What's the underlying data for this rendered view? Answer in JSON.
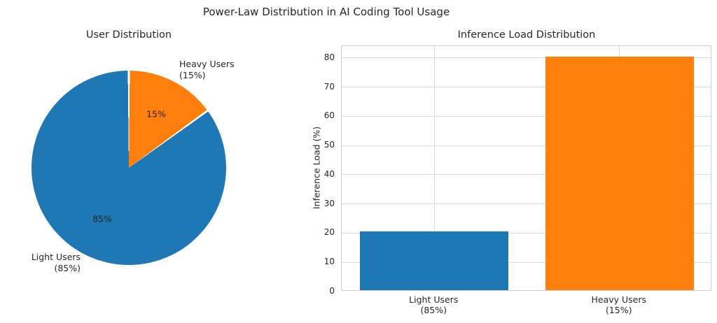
{
  "figure": {
    "title": "Power-Law Distribution in AI Coding Tool Usage",
    "background": "#ffffff",
    "text_color": "#262626",
    "grid_color": "#dcdcdc",
    "spine_color": "#cccccc"
  },
  "chart_data": [
    {
      "type": "pie",
      "title": "User Distribution",
      "start_angle": 90,
      "direction": "counterclockwise",
      "slices": [
        {
          "label": "Light Users\n(85%)",
          "value": 85,
          "pct_label": "85%",
          "color": "#1f77b4"
        },
        {
          "label": "Heavy Users\n(15%)",
          "value": 15,
          "pct_label": "15%",
          "color": "#ff7f0e"
        }
      ]
    },
    {
      "type": "bar",
      "title": "Inference Load Distribution",
      "ylabel": "Inference Load (%)",
      "categories": [
        "Light Users\n(85%)",
        "Heavy Users\n(15%)"
      ],
      "values": [
        20,
        80
      ],
      "bar_colors": [
        "#1f77b4",
        "#ff7f0e"
      ],
      "yticks": [
        0,
        10,
        20,
        30,
        40,
        50,
        60,
        70,
        80
      ],
      "ylim": [
        0,
        84
      ],
      "bar_width_fraction": 0.8,
      "grid": true,
      "legend": false
    }
  ]
}
